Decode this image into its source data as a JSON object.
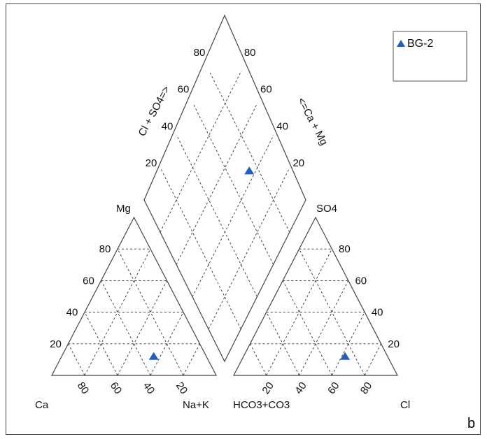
{
  "chart_data": {
    "type": "scatter",
    "subtype": "piper-diagram",
    "title": "",
    "panel_letter": "b",
    "legend": {
      "placement": "top-right",
      "entries": [
        {
          "name": "BG-2",
          "marker": "triangle",
          "color": "#1f5fc2"
        }
      ]
    },
    "cation_triangle": {
      "corner_labels": {
        "left": "Ca",
        "top": "Mg",
        "right": "Na+K"
      },
      "mg_ticks": [
        "20",
        "40",
        "60",
        "80"
      ],
      "nak_ticks": [
        "20",
        "40",
        "60",
        "80"
      ],
      "grid_step": 20
    },
    "anion_triangle": {
      "corner_labels": {
        "left": "HCO3+CO3",
        "top": "SO4",
        "right": "Cl"
      },
      "so4_ticks": [
        "20",
        "40",
        "60",
        "80"
      ],
      "cl_ticks": [
        "20",
        "40",
        "60",
        "80"
      ],
      "grid_step": 20
    },
    "diamond": {
      "left_axis_label": "Cl + SO4=>",
      "right_axis_label": "<=Ca + Mg",
      "left_ticks": [
        "20",
        "40",
        "60",
        "80"
      ],
      "right_ticks": [
        "20",
        "40",
        "60",
        "80"
      ]
    },
    "series": [
      {
        "name": "BG-2",
        "cation": {
          "Ca": 32,
          "Mg": 12,
          "NaK": 56
        },
        "anion": {
          "HCO3_CO3": 26,
          "SO4": 12,
          "Cl": 62
        },
        "diamond": {
          "Cl_SO4": 74,
          "Ca_Mg": 44
        }
      }
    ]
  }
}
